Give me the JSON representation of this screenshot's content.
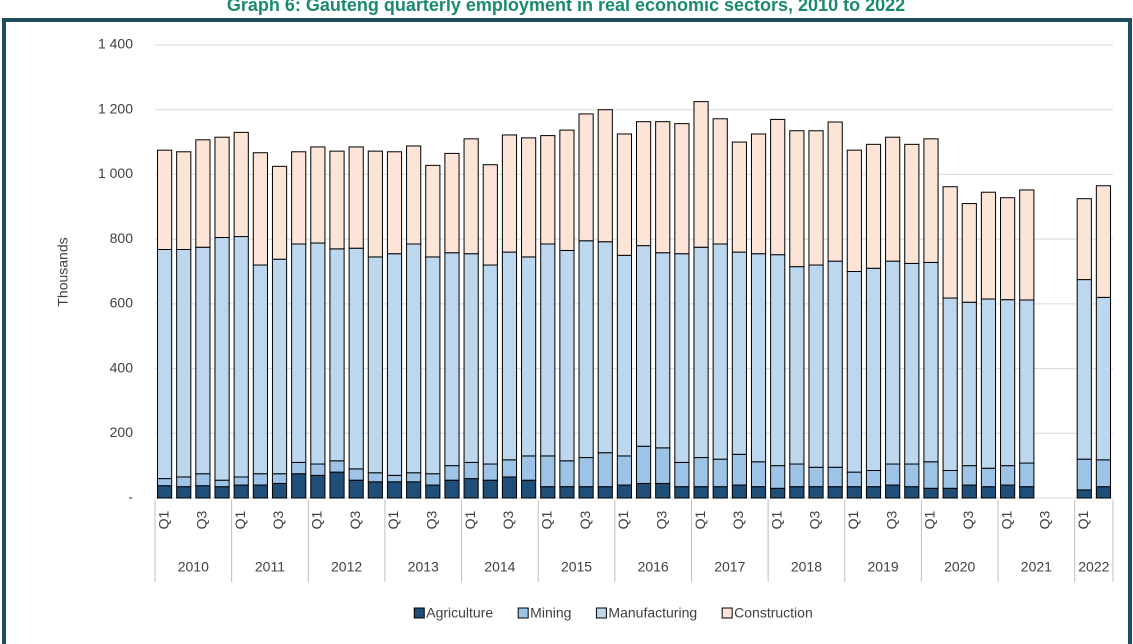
{
  "chart_data": {
    "type": "stacked_bar",
    "title": "Graph 6: Gauteng quarterly employment in real economic sectors, 2010 to 2022",
    "y_label": "Thousands",
    "categories": [
      "Q1",
      null,
      "Q3",
      null,
      "Q1",
      null,
      "Q3",
      null,
      "Q1",
      null,
      "Q3",
      null,
      "Q1",
      null,
      "Q3",
      null,
      "Q1",
      null,
      "Q3",
      null,
      "Q1",
      null,
      "Q3",
      null,
      "Q1",
      null,
      "Q3",
      null,
      "Q1",
      null,
      "Q3",
      null,
      "Q1",
      null,
      "Q3",
      null,
      "Q1",
      null,
      "Q3",
      null,
      "Q1",
      null,
      "Q3",
      null,
      "Q1",
      null,
      "Q3",
      null,
      "Q1",
      null
    ],
    "groups": [
      {
        "label": "2010",
        "count": 4
      },
      {
        "label": "2011",
        "count": 4
      },
      {
        "label": "2012",
        "count": 4
      },
      {
        "label": "2013",
        "count": 4
      },
      {
        "label": "2014",
        "count": 4
      },
      {
        "label": "2015",
        "count": 4
      },
      {
        "label": "2016",
        "count": 4
      },
      {
        "label": "2017",
        "count": 4
      },
      {
        "label": "2018",
        "count": 4
      },
      {
        "label": "2019",
        "count": 4
      },
      {
        "label": "2020",
        "count": 4
      },
      {
        "label": "2021",
        "count": 4
      },
      {
        "label": "2022",
        "count": 2
      }
    ],
    "series": [
      {
        "name": "Agriculture",
        "color": "#1f4e79",
        "values": [
          38,
          35,
          38,
          35,
          40,
          40,
          45,
          75,
          70,
          80,
          55,
          50,
          50,
          50,
          40,
          55,
          60,
          55,
          65,
          55,
          35,
          35,
          35,
          35,
          40,
          45,
          45,
          35,
          35,
          35,
          40,
          35,
          30,
          35,
          35,
          35,
          35,
          35,
          40,
          35,
          30,
          30,
          40,
          35,
          40,
          35,
          null,
          null,
          25,
          35
        ]
      },
      {
        "name": "Mining",
        "color": "#9dc3e6",
        "values": [
          22,
          30,
          37,
          20,
          25,
          35,
          30,
          35,
          35,
          35,
          35,
          28,
          20,
          28,
          35,
          45,
          50,
          50,
          53,
          75,
          95,
          80,
          90,
          105,
          90,
          115,
          110,
          75,
          90,
          85,
          95,
          77,
          70,
          70,
          60,
          60,
          45,
          50,
          65,
          70,
          82,
          55,
          60,
          57,
          60,
          73,
          null,
          null,
          95,
          83
        ]
      },
      {
        "name": "Manufacturing",
        "color": "#bdd7ee",
        "values": [
          708,
          703,
          700,
          750,
          743,
          645,
          663,
          675,
          683,
          655,
          682,
          667,
          685,
          707,
          670,
          658,
          645,
          615,
          642,
          615,
          655,
          650,
          670,
          652,
          620,
          620,
          603,
          645,
          650,
          665,
          625,
          643,
          652,
          610,
          625,
          637,
          620,
          625,
          627,
          620,
          616,
          533,
          505,
          523,
          513,
          504,
          null,
          null,
          555,
          502
        ]
      },
      {
        "name": "Construction",
        "color": "#fce4d6",
        "values": [
          307,
          302,
          332,
          310,
          322,
          347,
          287,
          285,
          297,
          302,
          313,
          327,
          315,
          303,
          283,
          307,
          355,
          310,
          362,
          368,
          335,
          372,
          392,
          408,
          375,
          383,
          405,
          402,
          450,
          387,
          340,
          370,
          418,
          420,
          415,
          430,
          375,
          383,
          383,
          368,
          382,
          344,
          305,
          330,
          315,
          340,
          null,
          null,
          250,
          345
        ]
      }
    ],
    "ylim": [
      0,
      1400
    ],
    "yticks": [
      {
        "value": 0,
        "label": "-"
      },
      200,
      400,
      600,
      800,
      {
        "value": 1000,
        "label": "1 000"
      },
      {
        "value": 1200,
        "label": "1 200"
      },
      {
        "value": 1400,
        "label": "1 400"
      }
    ],
    "grid": true,
    "legend": "bottom"
  }
}
